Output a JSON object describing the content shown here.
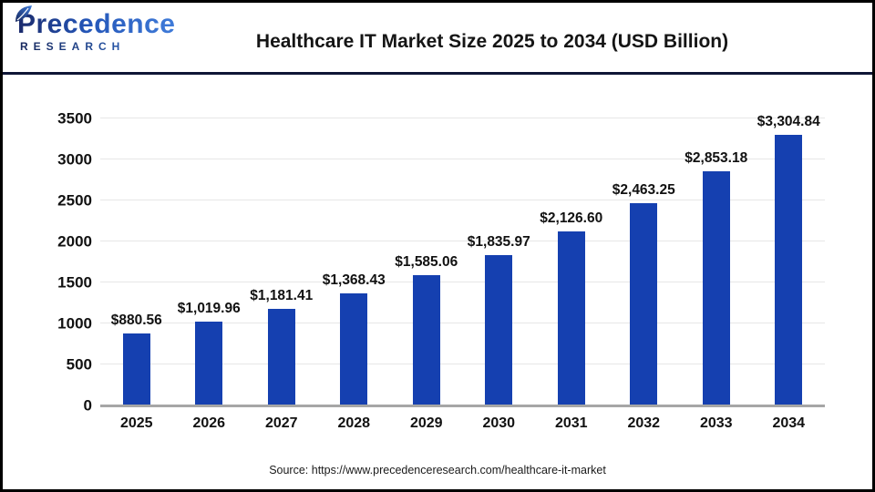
{
  "header": {
    "logo_name": "Precedence",
    "logo_sub": "RESEARCH",
    "title": "Healthcare IT Market Size 2025 to 2034 (USD Billion)"
  },
  "chart_data": {
    "type": "bar",
    "title": "Healthcare IT Market Size 2025 to 2034 (USD Billion)",
    "categories": [
      "2025",
      "2026",
      "2027",
      "2028",
      "2029",
      "2030",
      "2031",
      "2032",
      "2033",
      "2034"
    ],
    "values": [
      880.56,
      1019.96,
      1181.41,
      1368.43,
      1585.06,
      1835.97,
      2126.6,
      2463.25,
      2853.18,
      3304.84
    ],
    "data_labels": [
      "$880.56",
      "$1,019.96",
      "$1,181.41",
      "$1,368.43",
      "$1,585.06",
      "$1,835.97",
      "$2,126.60",
      "$2,463.25",
      "$2,853.18",
      "$3,304.84"
    ],
    "xlabel": "",
    "ylabel": "",
    "ylim": [
      0,
      3500
    ],
    "yticks": [
      0,
      500,
      1000,
      1500,
      2000,
      2500,
      3000,
      3500
    ],
    "grid": true,
    "legend": false,
    "bar_color": "#1540b0",
    "axis_line_color": "#a6a6a6",
    "gridline_color": "#e7e7e7"
  },
  "footer": {
    "source": "Source: https://www.precedenceresearch.com/healthcare-it-market"
  }
}
